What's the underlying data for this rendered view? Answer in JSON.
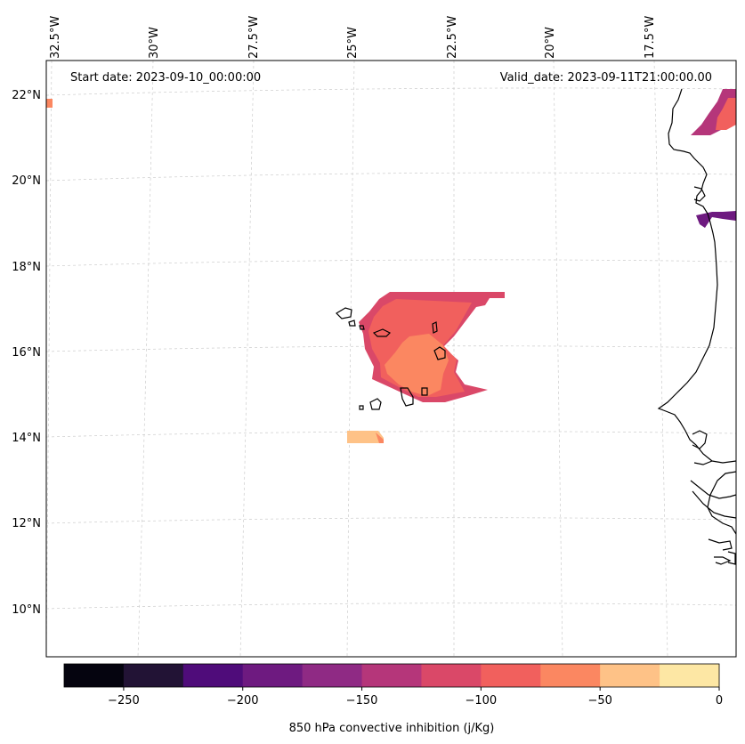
{
  "header": {
    "start_date": "Start date: 2023-09-10_00:00:00",
    "valid_date": "Valid_date: 2023-09-11T21:00:00.00"
  },
  "map": {
    "lon_labels": [
      "32.5°W",
      "30°W",
      "27.5°W",
      "25°W",
      "22.5°W",
      "20°W",
      "17.5°W"
    ],
    "lat_labels": [
      "22°N",
      "20°N",
      "18°N",
      "16°N",
      "14°N",
      "12°N",
      "10°N"
    ],
    "gridlines": "dashed",
    "coastline_color": "#000000"
  },
  "colorbar": {
    "title": "850 hPa convective inhibition (j/Kg)",
    "tick_labels": [
      "−250",
      "−200",
      "−150",
      "−100",
      "−50",
      "0"
    ],
    "bins": [
      -275,
      -250,
      -225,
      -200,
      -175,
      -150,
      -125,
      -100,
      -75,
      -50,
      -25,
      0
    ],
    "colors": [
      "#05040f",
      "#221335",
      "#4f0c7a",
      "#6e1a80",
      "#8f2a84",
      "#b5367a",
      "#da4868",
      "#f1605d",
      "#fb8761",
      "#fec287",
      "#fde7a4"
    ]
  }
}
